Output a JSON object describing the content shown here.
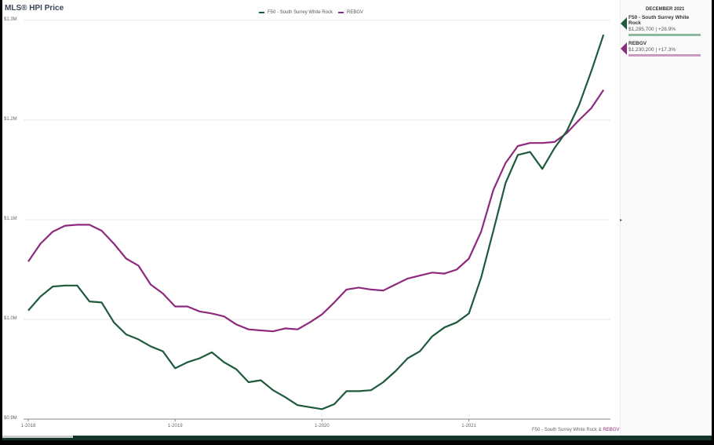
{
  "header": {
    "title": "MLS® HPI Price"
  },
  "legend": [
    {
      "label": "F50 - South Surrey White Rock",
      "color": "#1f5a3c"
    },
    {
      "label": "REBGV",
      "color": "#8e2a7d"
    }
  ],
  "panel": {
    "date": "DECEMBER 2021",
    "series": [
      {
        "name": "F50 - South Surrey White Rock",
        "value": "$1,285,700 | +28.9%",
        "color": "#1f5a3c",
        "bar_color": "#8fb8a2"
      },
      {
        "name": "REBGV",
        "value": "$1,230,200 | +17.3%",
        "color": "#8e2a7d",
        "bar_color": "#c99bc1"
      }
    ]
  },
  "footer": {
    "prefix": "F50 - South Surrey White Rock & ",
    "highlight": "REBGV"
  },
  "chart_data": {
    "type": "line",
    "title": "MLS® HPI Price",
    "xlabel": "",
    "ylabel": "",
    "ylim": [
      900000,
      1300000
    ],
    "yticks": [
      "$0.9M",
      "$1.0M",
      "$1.1M",
      "$1.2M",
      "$1.3M"
    ],
    "xticks": [
      "1-2018",
      "1-2019",
      "1-2020",
      "1-2021"
    ],
    "grid": true,
    "legend_position": "top",
    "x": [
      "1-2018",
      "2-2018",
      "3-2018",
      "4-2018",
      "5-2018",
      "6-2018",
      "7-2018",
      "8-2018",
      "9-2018",
      "10-2018",
      "11-2018",
      "12-2018",
      "1-2019",
      "2-2019",
      "3-2019",
      "4-2019",
      "5-2019",
      "6-2019",
      "7-2019",
      "8-2019",
      "9-2019",
      "10-2019",
      "11-2019",
      "12-2019",
      "1-2020",
      "2-2020",
      "3-2020",
      "4-2020",
      "5-2020",
      "6-2020",
      "7-2020",
      "8-2020",
      "9-2020",
      "10-2020",
      "11-2020",
      "12-2020",
      "1-2021",
      "2-2021",
      "3-2021",
      "4-2021",
      "5-2021",
      "6-2021",
      "7-2021",
      "8-2021",
      "9-2021",
      "10-2021",
      "11-2021",
      "12-2021"
    ],
    "series": [
      {
        "name": "F50 - South Surrey White Rock",
        "color": "#1f5a3c",
        "values": [
          1009000,
          1023000,
          1033000,
          1034000,
          1034000,
          1018000,
          1017000,
          997000,
          985000,
          980000,
          973000,
          968000,
          951000,
          957000,
          961000,
          967000,
          957000,
          950000,
          937000,
          939000,
          929000,
          922000,
          914000,
          912000,
          910000,
          915000,
          928000,
          928000,
          929000,
          937000,
          948000,
          961000,
          968000,
          983000,
          992000,
          997000,
          1006000,
          1042000,
          1089000,
          1137000,
          1165000,
          1168000,
          1151000,
          1172000,
          1189000,
          1215000,
          1249000,
          1285700
        ]
      },
      {
        "name": "REBGV",
        "color": "#8e2a7d",
        "values": [
          1058000,
          1076000,
          1088000,
          1094000,
          1095000,
          1095000,
          1089000,
          1076000,
          1061000,
          1054000,
          1035000,
          1026000,
          1013000,
          1013000,
          1008000,
          1006000,
          1003000,
          995000,
          990000,
          989000,
          988000,
          991000,
          990000,
          997000,
          1005000,
          1017000,
          1030000,
          1032000,
          1030000,
          1029000,
          1035000,
          1041000,
          1044000,
          1047000,
          1046000,
          1050000,
          1061000,
          1088000,
          1130000,
          1157000,
          1174000,
          1177000,
          1177000,
          1178000,
          1187000,
          1200000,
          1212000,
          1230200
        ]
      }
    ]
  }
}
